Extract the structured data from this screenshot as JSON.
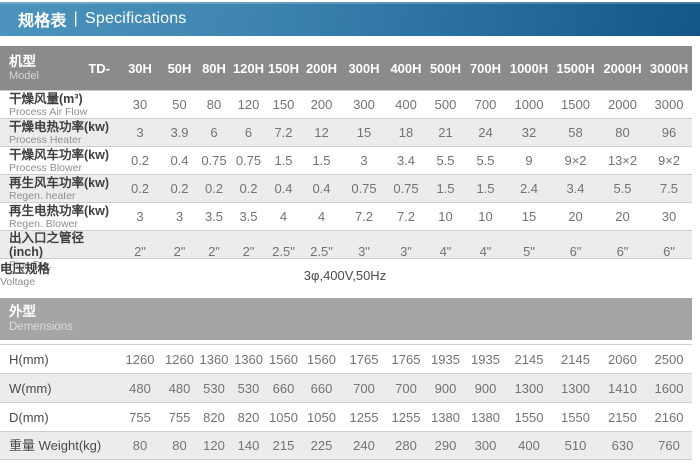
{
  "title_bar": {
    "title_zh": "规格表",
    "separator": "|",
    "title_en": "Specifications"
  },
  "colors": {
    "bar_gradient_left": "#4c94bd",
    "bar_gradient_right": "#12568a",
    "model_header_bg": "#8b8b8b",
    "section_header_bg": "#a5a5a5",
    "stripe_bg": "#ececec",
    "row_line": "#cdcdcd",
    "value_text": "#737373"
  },
  "table": {
    "header": {
      "label_zh": "机型",
      "label_en": "Model",
      "series_prefix": "TD-",
      "models": [
        "30H",
        "50H",
        "80H",
        "120H",
        "150H",
        "200H",
        "300H",
        "400H",
        "500H",
        "700H",
        "1000H",
        "1500H",
        "2000H",
        "3000H"
      ]
    },
    "spec_rows": [
      {
        "label_zh": "干燥风量(m³)",
        "label_en": "Process Air Flow",
        "values": [
          "30",
          "50",
          "80",
          "120",
          "150",
          "200",
          "300",
          "400",
          "500",
          "700",
          "1000",
          "1500",
          "2000",
          "3000"
        ]
      },
      {
        "label_zh": "干燥电热功率(kw)",
        "label_en": "Process Heater",
        "values": [
          "3",
          "3.9",
          "6",
          "6",
          "7.2",
          "12",
          "15",
          "18",
          "21",
          "24",
          "32",
          "58",
          "80",
          "96"
        ]
      },
      {
        "label_zh": "干燥风车功率(kw)",
        "label_en": "Process Blower",
        "values": [
          "0.2",
          "0.4",
          "0.75",
          "0.75",
          "1.5",
          "1.5",
          "3",
          "3.4",
          "5.5",
          "5.5",
          "9",
          "9×2",
          "13×2",
          "9×2"
        ]
      },
      {
        "label_zh": "再生风车功率(kw)",
        "label_en": "Regen. heater",
        "values": [
          "0.2",
          "0.2",
          "0.2",
          "0.2",
          "0.4",
          "0.4",
          "0.75",
          "0.75",
          "1.5",
          "1.5",
          "2.4",
          "3.4",
          "5.5",
          "7.5"
        ]
      },
      {
        "label_zh": "再生电热功率(kw)",
        "label_en": "Regen. Blower",
        "values": [
          "3",
          "3",
          "3.5",
          "3.5",
          "4",
          "4",
          "7.2",
          "7.2",
          "10",
          "10",
          "15",
          "20",
          "20",
          "30"
        ]
      },
      {
        "label_zh": "出入口之管径(inch)",
        "label_en": "Pipe Dia.",
        "values": [
          "2\"",
          "2\"",
          "2\"",
          "2\"",
          "2.5\"",
          "2.5\"",
          "3\"",
          "3\"",
          "4\"",
          "4\"",
          "5\"",
          "6\"",
          "6\"",
          "6\""
        ]
      }
    ],
    "voltage_row": {
      "label_zh": "电压规格",
      "label_en": "Voltage",
      "value": "3φ,400V,50Hz"
    },
    "section_header": {
      "label_zh": "外型",
      "label_en": "Demensions"
    },
    "dim_rows": [
      {
        "label": "H(mm)",
        "values": [
          "1260",
          "1260",
          "1360",
          "1360",
          "1560",
          "1560",
          "1765",
          "1765",
          "1935",
          "1935",
          "2145",
          "2145",
          "2060",
          "2500"
        ]
      },
      {
        "label": "W(mm)",
        "values": [
          "480",
          "480",
          "530",
          "530",
          "660",
          "660",
          "700",
          "700",
          "900",
          "900",
          "1300",
          "1300",
          "1410",
          "1600"
        ]
      },
      {
        "label": "D(mm)",
        "values": [
          "755",
          "755",
          "820",
          "820",
          "1050",
          "1050",
          "1255",
          "1255",
          "1380",
          "1380",
          "1550",
          "1550",
          "2150",
          "2160"
        ]
      },
      {
        "label": "重量 Weight(kg)",
        "values": [
          "80",
          "80",
          "120",
          "140",
          "215",
          "225",
          "240",
          "280",
          "290",
          "300",
          "400",
          "510",
          "630",
          "760"
        ]
      }
    ]
  }
}
